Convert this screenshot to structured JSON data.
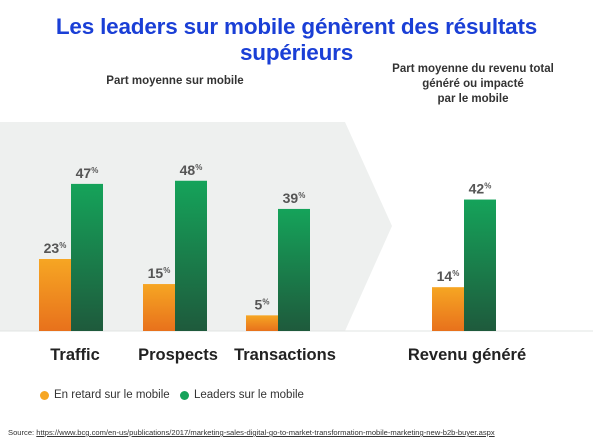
{
  "title": "Les leaders sur mobile génèrent des résultats supérieurs",
  "subhead_left": "Part moyenne sur mobile",
  "subhead_right": [
    "Part moyenne du revenu total",
    "généré ou impacté",
    "par le mobile"
  ],
  "legend": {
    "lag": "En retard sur le mobile",
    "lead": "Leaders sur le mobile"
  },
  "source": {
    "prefix": "Source:",
    "url": "https://www.bcg.com/en-us/publications/2017/marketing-sales-digital-go-to-market-transformation-mobile-marketing-new-b2b-buyer.aspx"
  },
  "colors": {
    "title": "#1a3fd6",
    "lag_top": "#f6a623",
    "lag_bottom": "#e8711c",
    "lead_top": "#15a35a",
    "lead_bottom": "#1e5a3c",
    "panel": "#eef0ef"
  },
  "chart_data": {
    "type": "bar",
    "unit": "%",
    "categories": [
      "Traffic",
      "Prospects",
      "Transactions",
      "Revenu généré"
    ],
    "series": [
      {
        "name": "En retard sur le mobile",
        "values": [
          23,
          15,
          5,
          14
        ]
      },
      {
        "name": "Leaders sur le mobile",
        "values": [
          47,
          48,
          39,
          42
        ]
      }
    ],
    "ylim": [
      0,
      50
    ],
    "grid": false,
    "legend_position": "bottom-left"
  }
}
